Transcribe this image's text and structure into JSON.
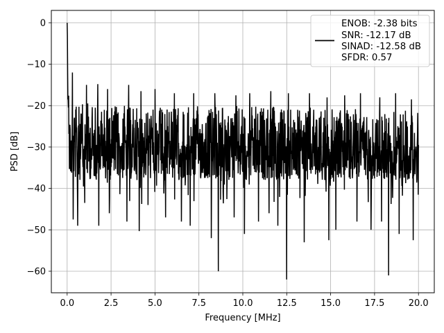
{
  "chart_data": {
    "type": "line",
    "title": "",
    "xlabel": "Frequency [MHz]",
    "ylabel": "PSD [dB]",
    "xlim": [
      -0.9,
      20.9
    ],
    "ylim": [
      -65.2,
      3.0
    ],
    "xticks": [
      0.0,
      2.5,
      5.0,
      7.5,
      10.0,
      12.5,
      15.0,
      17.5,
      20.0
    ],
    "xtick_labels": [
      "0.0",
      "2.5",
      "5.0",
      "7.5",
      "10.0",
      "12.5",
      "15.0",
      "17.5",
      "20.0"
    ],
    "yticks": [
      0,
      -10,
      -20,
      -30,
      -40,
      -50,
      -60
    ],
    "ytick_labels": [
      "0",
      "−10",
      "−20",
      "−30",
      "−40",
      "−50",
      "−60"
    ],
    "grid": true,
    "legend_position": "top-right",
    "series_color": "#000000",
    "series": [
      {
        "legend_lines": [
          "ENOB: -2.38 bits",
          "SNR: -12.17 dB",
          "SINAD: -12.58 dB",
          "SFDR: 0.57"
        ],
        "x_start": 0.0,
        "x_end": 20.0,
        "peak": {
          "x": 0.0,
          "y": 0.0
        },
        "typical_band": [
          -34,
          -20
        ],
        "envelope": [
          [
            0.0,
            0.0
          ],
          [
            0.03,
            -6
          ],
          [
            0.06,
            -12
          ],
          [
            0.1,
            -18
          ],
          [
            0.2,
            -21
          ],
          [
            0.5,
            -20
          ],
          [
            1.0,
            -19
          ],
          [
            2.0,
            -19.5
          ],
          [
            5.0,
            -20
          ],
          [
            10.0,
            -20
          ],
          [
            15.0,
            -20.5
          ],
          [
            20.0,
            -21
          ]
        ],
        "dips": [
          [
            0.35,
            -47.5
          ],
          [
            0.6,
            -49
          ],
          [
            1.0,
            -43.5
          ],
          [
            1.8,
            -49
          ],
          [
            2.4,
            -46
          ],
          [
            3.4,
            -48
          ],
          [
            4.1,
            -50.3
          ],
          [
            4.6,
            -44
          ],
          [
            5.0,
            -55.6
          ],
          [
            5.6,
            -47
          ],
          [
            6.5,
            -48
          ],
          [
            7.0,
            -49
          ],
          [
            8.2,
            -52
          ],
          [
            8.6,
            -60
          ],
          [
            9.5,
            -47
          ],
          [
            10.1,
            -51
          ],
          [
            10.9,
            -48
          ],
          [
            11.5,
            -46
          ],
          [
            12.0,
            -49
          ],
          [
            12.5,
            -62
          ],
          [
            13.5,
            -53
          ],
          [
            14.9,
            -52.5
          ],
          [
            15.3,
            -50
          ],
          [
            16.5,
            -48
          ],
          [
            17.3,
            -50
          ],
          [
            17.9,
            -48
          ],
          [
            18.3,
            -61
          ],
          [
            18.9,
            -51
          ],
          [
            19.7,
            -52.5
          ]
        ],
        "spikes": [
          [
            0.3,
            -12
          ],
          [
            1.1,
            -15
          ],
          [
            1.75,
            -14.8
          ],
          [
            2.3,
            -16
          ],
          [
            3.5,
            -15
          ],
          [
            4.2,
            -16.5
          ],
          [
            5.0,
            -16
          ],
          [
            6.1,
            -17
          ],
          [
            7.2,
            -17
          ],
          [
            8.4,
            -17
          ],
          [
            9.6,
            -17.5
          ],
          [
            10.4,
            -17
          ],
          [
            11.6,
            -16.5
          ],
          [
            12.6,
            -17
          ],
          [
            13.8,
            -17
          ],
          [
            14.8,
            -18
          ],
          [
            15.8,
            -17.5
          ],
          [
            16.7,
            -17
          ],
          [
            17.8,
            -18
          ],
          [
            18.7,
            -17
          ],
          [
            19.6,
            -18.5
          ]
        ]
      }
    ]
  }
}
